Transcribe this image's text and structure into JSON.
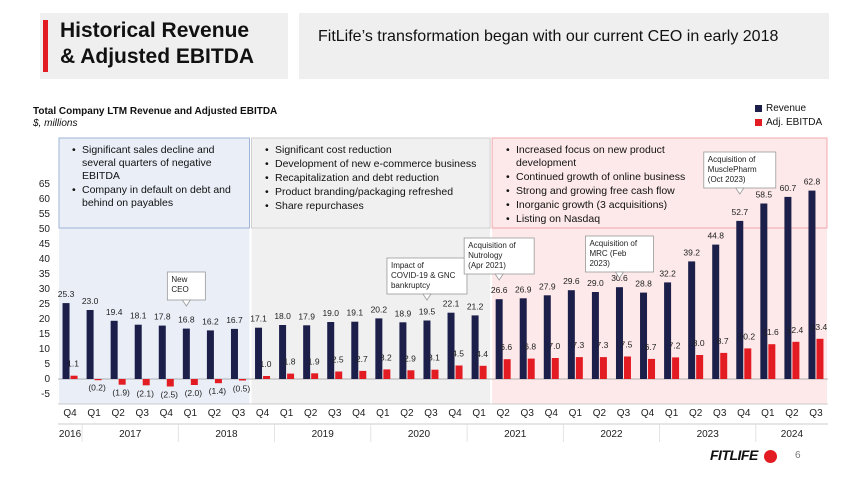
{
  "header": {
    "title_line1": "Historical Revenue",
    "title_line2": "& Adjusted EBITDA",
    "subtitle": "FitLife’s transformation began with our current CEO in early 2018"
  },
  "colors": {
    "revenue": "#1c1f4a",
    "ebitda": "#e31c23",
    "accent": "#e31c23"
  },
  "chart_data": {
    "type": "bar",
    "title": "Total Company LTM Revenue and Adjusted EBITDA",
    "subtitle": "$, millions",
    "ylim": [
      -5,
      65
    ],
    "yticks": [
      -5,
      0,
      5,
      10,
      15,
      20,
      25,
      30,
      35,
      40,
      45,
      50,
      55,
      60,
      65
    ],
    "categories": [
      "Q4",
      "Q1",
      "Q2",
      "Q3",
      "Q4",
      "Q1",
      "Q2",
      "Q3",
      "Q4",
      "Q1",
      "Q2",
      "Q3",
      "Q4",
      "Q1",
      "Q2",
      "Q3",
      "Q4",
      "Q1",
      "Q2",
      "Q3",
      "Q4",
      "Q1",
      "Q2",
      "Q3",
      "Q4",
      "Q1",
      "Q2",
      "Q3",
      "Q4",
      "Q1",
      "Q2",
      "Q3"
    ],
    "years": [
      {
        "label": "2016",
        "start": 0,
        "end": 0
      },
      {
        "label": "2017",
        "start": 1,
        "end": 4
      },
      {
        "label": "2018",
        "start": 5,
        "end": 8
      },
      {
        "label": "2019",
        "start": 9,
        "end": 12
      },
      {
        "label": "2020",
        "start": 13,
        "end": 16
      },
      {
        "label": "2021",
        "start": 17,
        "end": 20
      },
      {
        "label": "2022",
        "start": 21,
        "end": 24
      },
      {
        "label": "2023",
        "start": 25,
        "end": 28
      },
      {
        "label": "2024",
        "start": 29,
        "end": 31
      }
    ],
    "series": [
      {
        "name": "Revenue",
        "values": [
          25.3,
          23.0,
          19.4,
          18.1,
          17.8,
          16.8,
          16.2,
          16.7,
          17.1,
          18.0,
          17.9,
          19.0,
          19.1,
          20.2,
          18.9,
          19.5,
          22.1,
          21.2,
          26.6,
          26.9,
          27.9,
          29.6,
          29.0,
          30.6,
          28.8,
          32.2,
          39.2,
          44.8,
          52.7,
          58.5,
          60.7,
          62.8
        ]
      },
      {
        "name": "Adj. EBITDA",
        "values": [
          1.1,
          -0.2,
          -1.9,
          -2.1,
          -2.5,
          -2.0,
          -1.4,
          -0.5,
          1.0,
          1.8,
          1.9,
          2.5,
          2.7,
          3.2,
          2.9,
          3.1,
          4.5,
          4.4,
          6.6,
          6.8,
          7.0,
          7.3,
          7.3,
          7.5,
          6.7,
          7.2,
          8.0,
          8.7,
          10.2,
          11.6,
          12.4,
          13.4
        ]
      }
    ],
    "revenue_labels": [
      "25.3",
      "23.0",
      "19.4",
      "18.1",
      "17.8",
      "16.8",
      "16.2",
      "16.7",
      "17.1",
      "18.0",
      "17.9",
      "19.0",
      "19.1",
      "20.2",
      "18.9",
      "19.5",
      "22.1",
      "21.2",
      "26.6",
      "26.9",
      "27.9",
      "29.6",
      "29.0",
      "30.6",
      "28.8",
      "32.2",
      "39.2",
      "44.8",
      "52.7",
      "58.5",
      "60.7",
      "62.8"
    ],
    "ebitda_labels": [
      "1.1",
      "(0.2)",
      "(1.9)",
      "(2.1)",
      "(2.5)",
      "(2.0)",
      "(1.4)",
      "(0.5)",
      "1.0",
      "1.8",
      "1.9",
      "2.5",
      "2.7",
      "3.2",
      "2.9",
      "3.1",
      "4.5",
      "4.4",
      "6.6",
      "6.8",
      "7.0",
      "7.3",
      "7.3",
      "7.5",
      "6.7",
      "7.2",
      "8.0",
      "8.7",
      "10.2",
      "11.6",
      "12.4",
      "13.4"
    ],
    "legend": [
      "Revenue",
      "Adj. EBITDA"
    ],
    "phases": [
      {
        "start": 0,
        "end": 7,
        "bullets": [
          "Significant sales decline and several quarters of negative EBITDA",
          "Company in default on debt and behind on payables"
        ]
      },
      {
        "start": 8,
        "end": 17,
        "bullets": [
          "Significant cost reduction",
          "Development of new e-commerce business",
          "Recapitalization and debt reduction",
          "Product branding/packaging refreshed",
          "Share repurchases"
        ]
      },
      {
        "start": 18,
        "end": 31,
        "bullets": [
          "Increased focus on new product development",
          "Continued growth of online business",
          "Strong and growing free cash flow",
          "Inorganic growth (3 acquisitions)",
          "Listing on Nasdaq"
        ]
      }
    ],
    "annotations": [
      {
        "index": 5,
        "lines": [
          "New",
          "CEO"
        ]
      },
      {
        "index": 15,
        "lines": [
          "Impact of",
          "COVID-19 & GNC",
          "bankruptcy"
        ]
      },
      {
        "index": 18,
        "lines": [
          "Acquisition of",
          "Nutrology",
          "(Apr 2021)"
        ]
      },
      {
        "index": 23,
        "lines": [
          "Acquisition of",
          "MRC (Feb",
          "2023)"
        ]
      },
      {
        "index": 28,
        "lines": [
          "Acquisition of",
          "MusclePharm",
          "(Oct 2023)"
        ]
      }
    ]
  },
  "footer": {
    "brand": "FITLIFE",
    "page_number": "6"
  }
}
